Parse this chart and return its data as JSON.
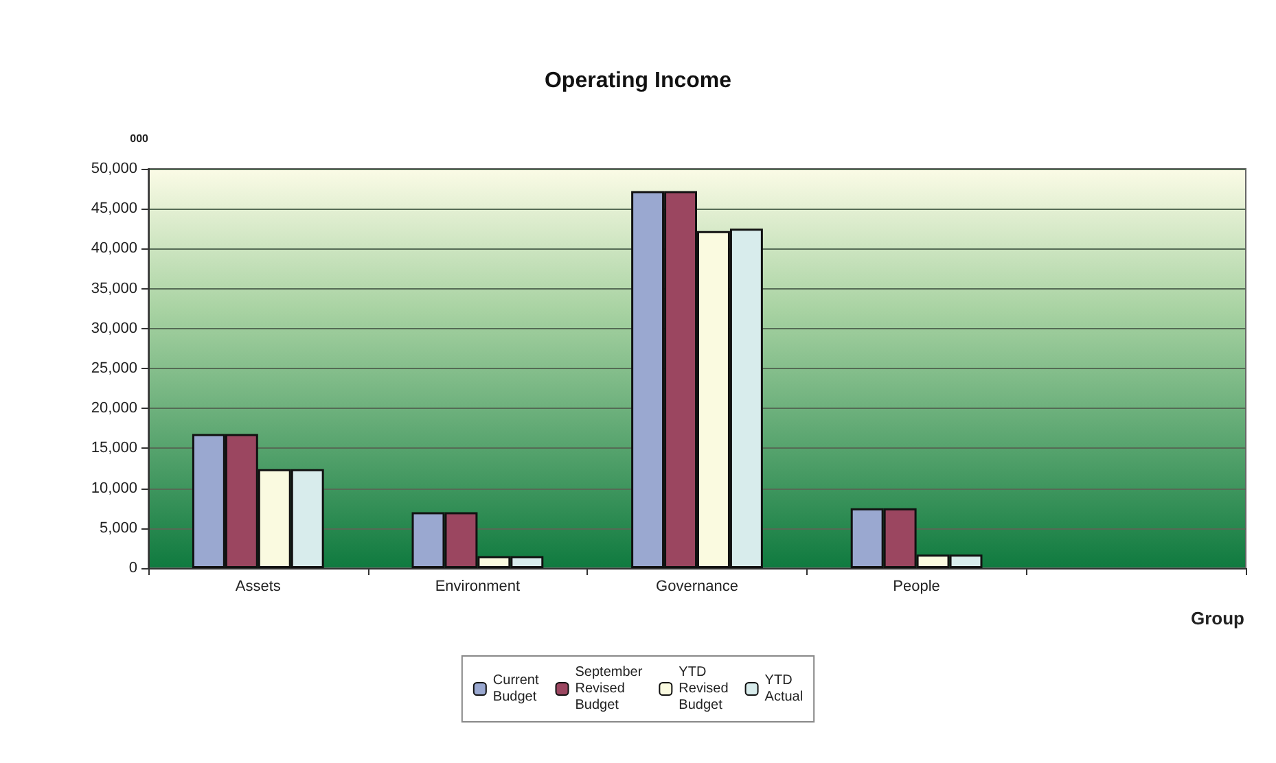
{
  "chart_data": {
    "type": "bar",
    "title": "Operating Income",
    "ylabel": "000",
    "xlabel": "Group",
    "categories": [
      "Assets",
      "Environment",
      "Governance",
      "People",
      null
    ],
    "series": [
      {
        "name": "Current Budget",
        "color": "#9aa8d0",
        "values": [
          16800,
          7000,
          47200,
          7500,
          null
        ]
      },
      {
        "name": "September Revised Budget",
        "color": "#9b4660",
        "values": [
          16800,
          7000,
          47200,
          7500,
          null
        ]
      },
      {
        "name": "YTD Revised Budget",
        "color": "#fafae0",
        "values": [
          12400,
          1500,
          42200,
          1700,
          null
        ]
      },
      {
        "name": "YTD Actual",
        "color": "#d8ecec",
        "values": [
          12400,
          1500,
          42500,
          1700,
          null
        ]
      }
    ],
    "ylim": [
      0,
      50000
    ],
    "yticks": [
      0,
      {
        "value": 5000,
        "label": "5,000"
      },
      {
        "value": 10000,
        "label": "10,000"
      },
      {
        "value": 15000,
        "label": "15,000"
      },
      {
        "value": 20000,
        "label": "20,000"
      },
      {
        "value": 25000,
        "label": "25,000"
      },
      {
        "value": 30000,
        "label": "30,000"
      },
      {
        "value": 35000,
        "label": "35,000"
      },
      {
        "value": 40000,
        "label": "40,000"
      },
      {
        "value": 45000,
        "label": "45,000"
      },
      {
        "value": 50000,
        "label": "50,000"
      }
    ],
    "grid": "y",
    "legend": "bottom"
  }
}
